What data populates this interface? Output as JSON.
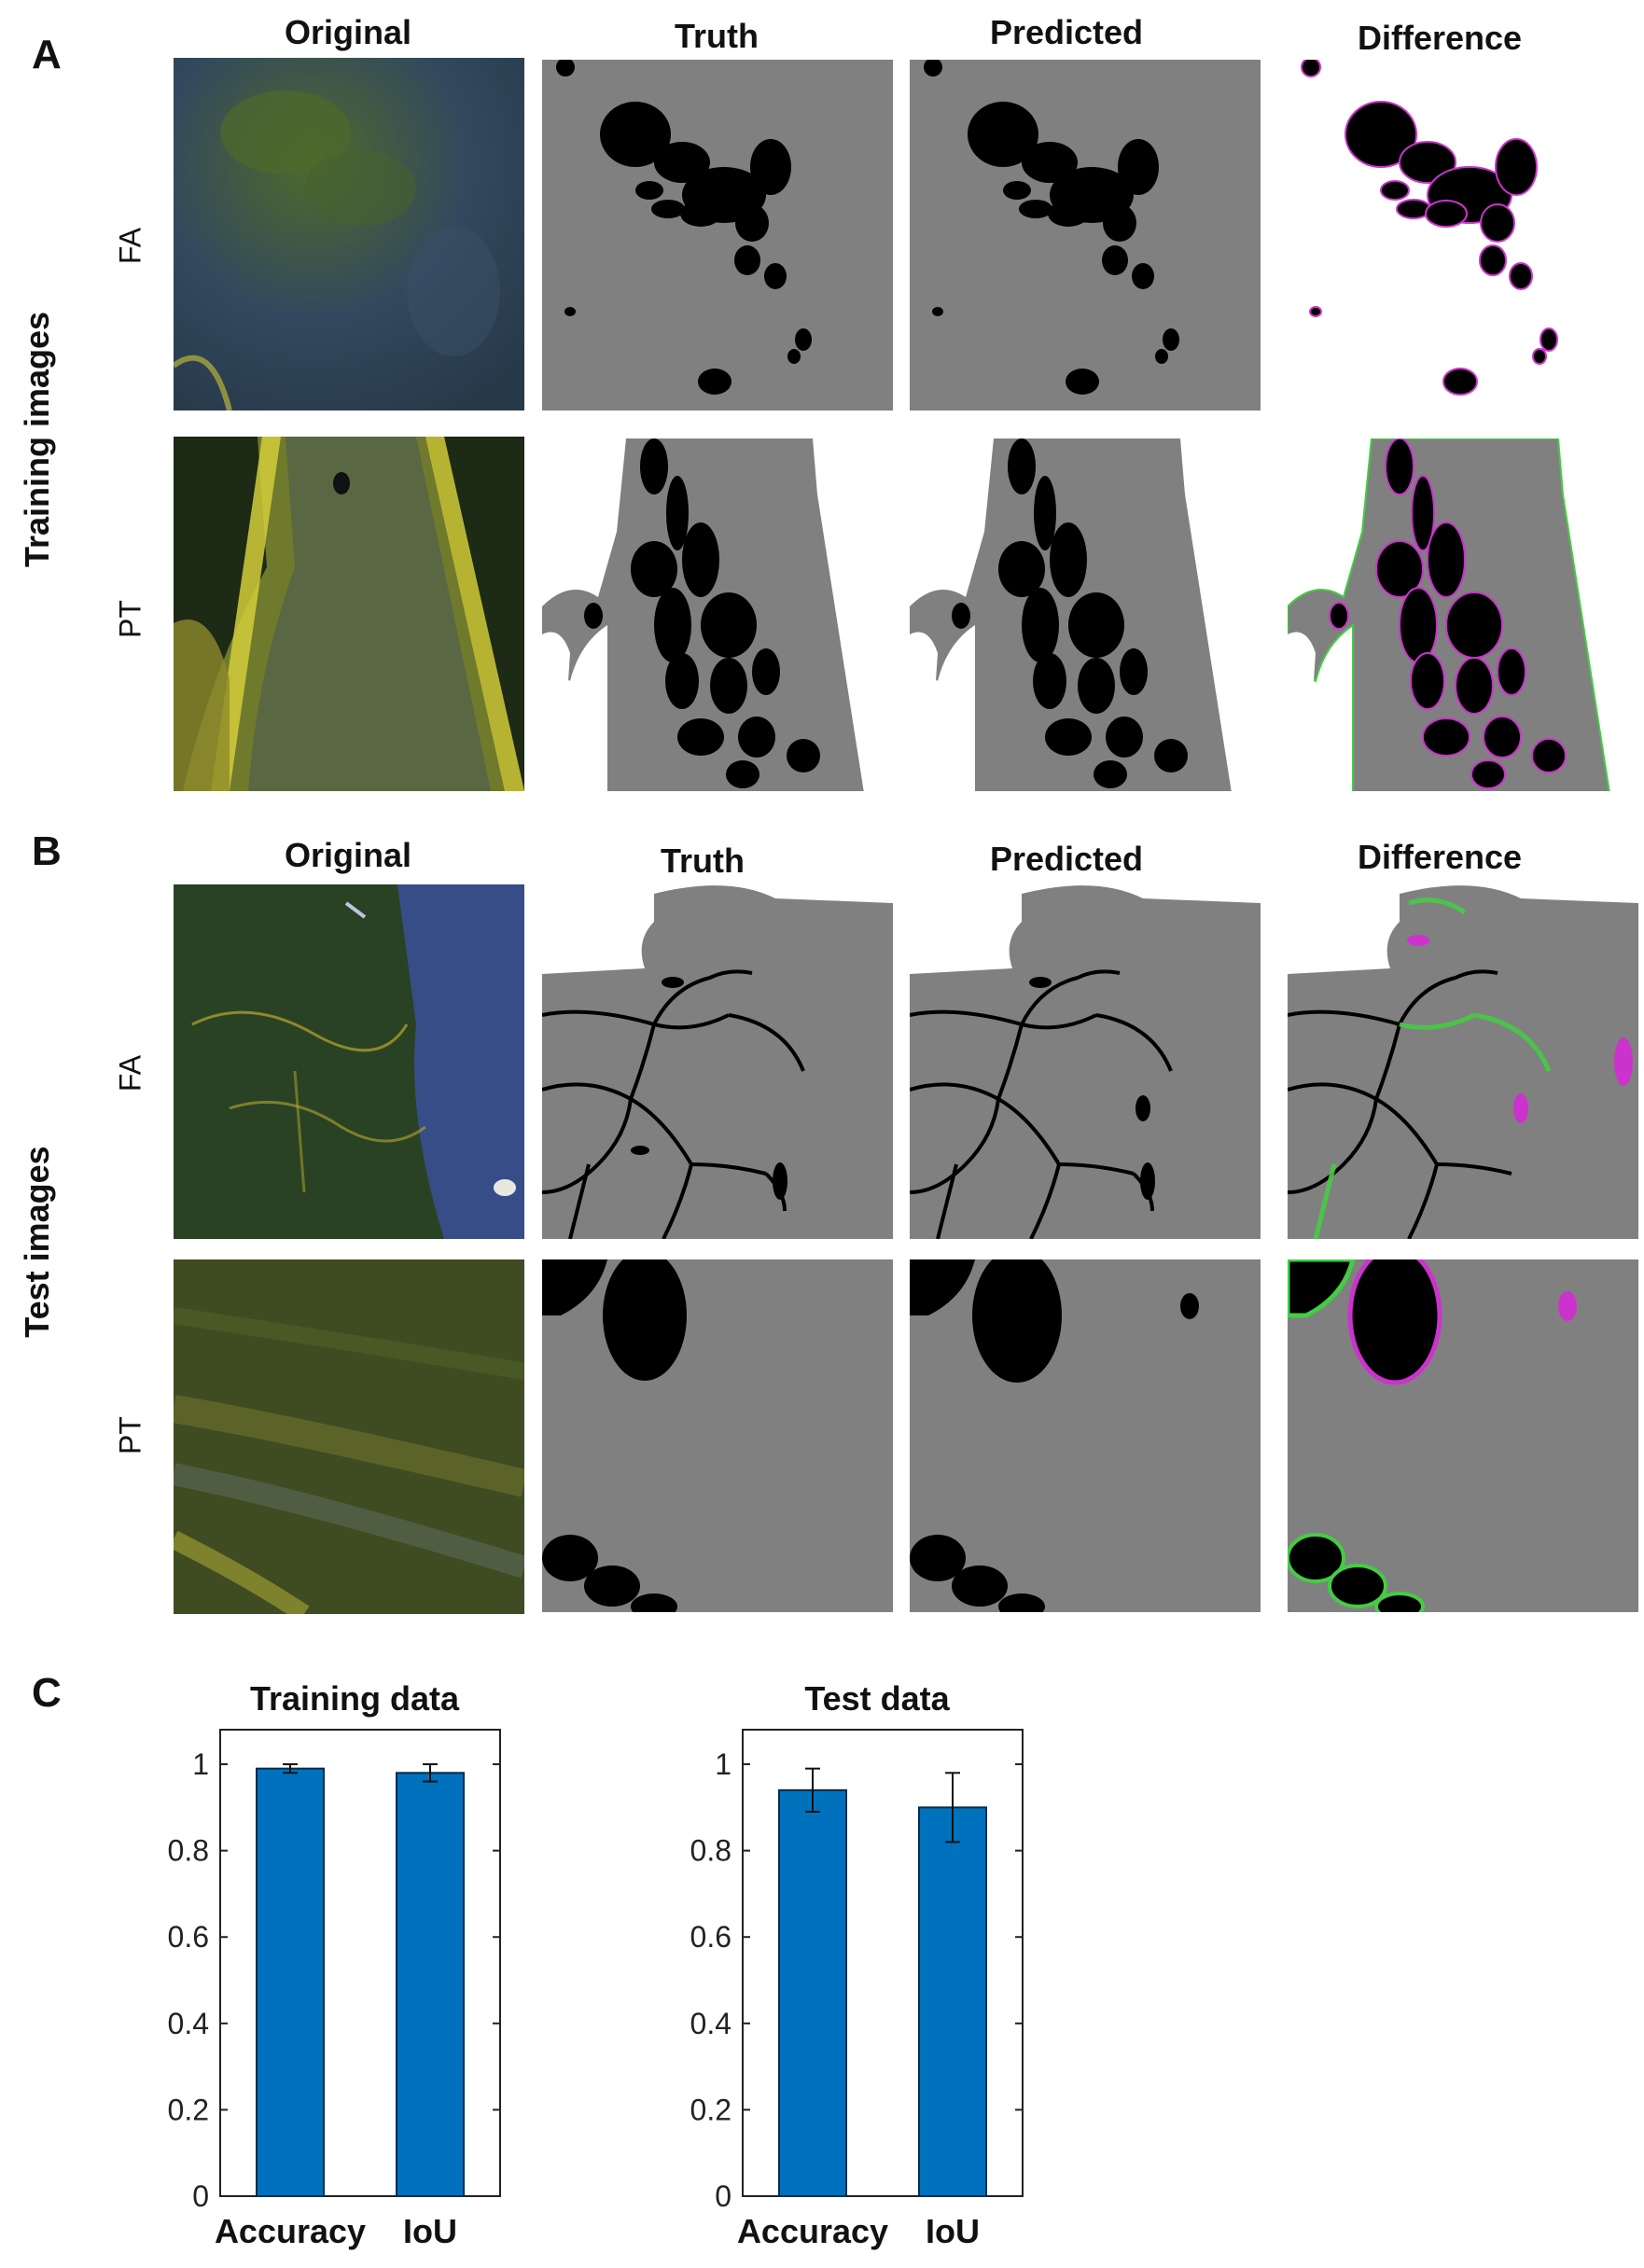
{
  "panels": {
    "A": {
      "letter": "A",
      "group_label": "Training images",
      "column_headers": [
        "Original",
        "Truth",
        "Predicted",
        "Difference"
      ],
      "rows": [
        {
          "label": "FA"
        },
        {
          "label": "PT"
        }
      ]
    },
    "B": {
      "letter": "B",
      "group_label": "Test images",
      "column_headers": [
        "Original",
        "Truth",
        "Predicted",
        "Difference"
      ],
      "rows": [
        {
          "label": "FA"
        },
        {
          "label": "PT"
        }
      ]
    },
    "C": {
      "letter": "C"
    }
  },
  "colors": {
    "tissue_gray": "#808080",
    "lumen_black": "#000000",
    "background_white": "#ffffff",
    "false_positive_magenta": "#cc33cc",
    "false_negative_green": "#44cc44",
    "bar_blue": "#0072bd"
  },
  "chart_data": [
    {
      "type": "bar",
      "title": "Training data",
      "categories": [
        "Accuracy",
        "IoU"
      ],
      "values": [
        0.99,
        0.98
      ],
      "error": [
        0.01,
        0.02
      ],
      "ylim": [
        0,
        1.08
      ],
      "yticks": [
        "0",
        "0.2",
        "0.4",
        "0.6",
        "0.8",
        "1"
      ],
      "grid": false
    },
    {
      "type": "bar",
      "title": "Test data",
      "categories": [
        "Accuracy",
        "IoU"
      ],
      "values": [
        0.94,
        0.9
      ],
      "error": [
        0.05,
        0.08
      ],
      "ylim": [
        0,
        1.08
      ],
      "yticks": [
        "0",
        "0.2",
        "0.4",
        "0.6",
        "0.8",
        "1"
      ],
      "grid": false
    }
  ]
}
